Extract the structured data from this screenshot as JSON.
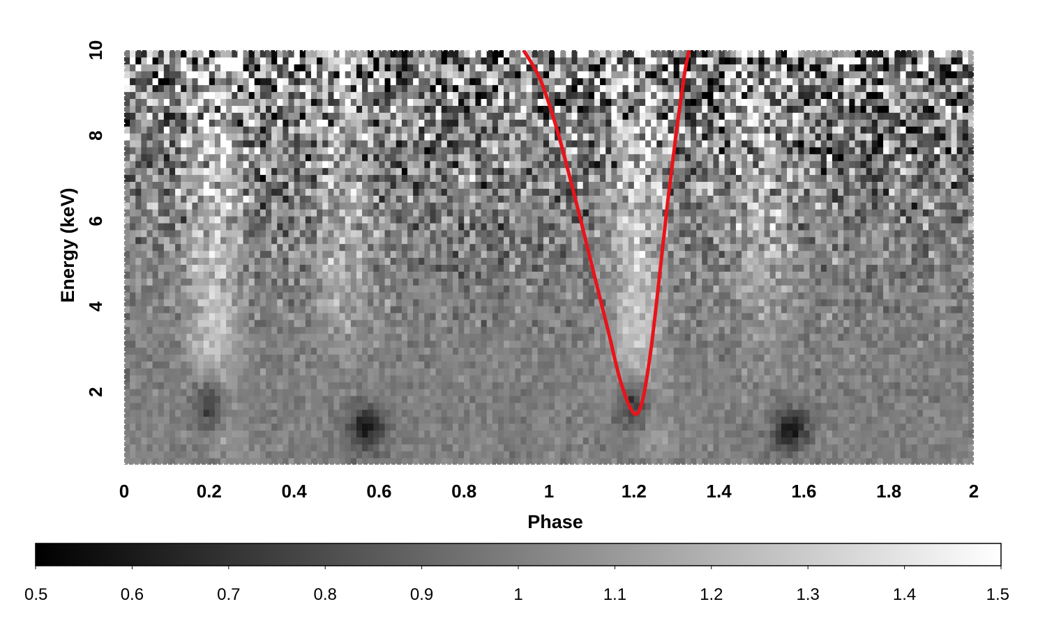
{
  "chart_data": {
    "type": "heatmap",
    "title": "",
    "xlabel": "Phase",
    "ylabel": "Energy (keV)",
    "xlim": [
      0,
      2
    ],
    "ylim": [
      0.3,
      10
    ],
    "xticks": [
      "0",
      "0.2",
      "0.4",
      "0.6",
      "0.8",
      "1",
      "1.2",
      "1.4",
      "1.6",
      "1.8",
      "2"
    ],
    "xtick_values": [
      0,
      0.2,
      0.4,
      0.6,
      0.8,
      1,
      1.2,
      1.4,
      1.6,
      1.8,
      2
    ],
    "yticks": [
      "2",
      "4",
      "6",
      "8",
      "10"
    ],
    "ytick_values": [
      2,
      4,
      6,
      8,
      10
    ],
    "colormap": "grayscale",
    "colorbar": {
      "range": [
        0.5,
        1.5
      ],
      "ticks": [
        "0.5",
        "0.6",
        "0.7",
        "0.8",
        "0.9",
        "1",
        "1.1",
        "1.2",
        "1.3",
        "1.4",
        "1.5"
      ],
      "tick_values": [
        0.5,
        0.6,
        0.7,
        0.8,
        0.9,
        1.0,
        1.1,
        1.2,
        1.3,
        1.4,
        1.5
      ],
      "placement": "bottom"
    },
    "features": [
      {
        "kind": "bright-band",
        "phase_center_at_low_energy": 0.2,
        "phase_center_at_high_energy": 0.2
      },
      {
        "kind": "bright-band",
        "phase_center_at_low_energy": 1.2,
        "phase_center_at_high_energy": 1.2
      },
      {
        "kind": "bright-band",
        "phase_center_at_low_energy": 0.55,
        "phase_center_at_high_energy": 0.5
      },
      {
        "kind": "bright-band",
        "phase_center_at_low_energy": 1.55,
        "phase_center_at_high_energy": 1.5
      },
      {
        "kind": "dark-dip",
        "phase": 0.2,
        "energy": 1.6
      },
      {
        "kind": "dark-dip",
        "phase": 1.2,
        "energy": 1.6
      },
      {
        "kind": "dark-dip",
        "phase": 0.57,
        "energy": 1.2
      },
      {
        "kind": "dark-dip",
        "phase": 1.57,
        "energy": 1.2
      }
    ],
    "overlay_curve": {
      "color": "#e8141b",
      "x": [
        0.94,
        0.98,
        1.02,
        1.06,
        1.1,
        1.14,
        1.17,
        1.2,
        1.22,
        1.24,
        1.26,
        1.28,
        1.3,
        1.32,
        1.33
      ],
      "y": [
        10.0,
        9.3,
        8.1,
        6.6,
        5.0,
        3.4,
        2.2,
        1.5,
        1.8,
        3.0,
        4.7,
        6.5,
        8.1,
        9.5,
        10.0
      ]
    }
  }
}
